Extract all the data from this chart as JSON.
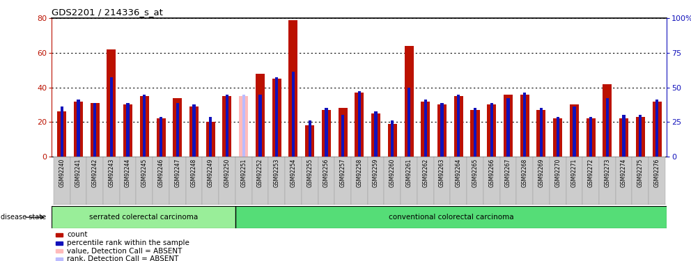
{
  "title": "GDS2201 / 214336_s_at",
  "samples": [
    "GSM92240",
    "GSM92241",
    "GSM92242",
    "GSM92243",
    "GSM92244",
    "GSM92245",
    "GSM92246",
    "GSM92247",
    "GSM92248",
    "GSM92249",
    "GSM92250",
    "GSM92251",
    "GSM92252",
    "GSM92253",
    "GSM92254",
    "GSM92255",
    "GSM92256",
    "GSM92257",
    "GSM92258",
    "GSM92259",
    "GSM92260",
    "GSM92261",
    "GSM92262",
    "GSM92263",
    "GSM92264",
    "GSM92265",
    "GSM92266",
    "GSM92267",
    "GSM92268",
    "GSM92269",
    "GSM92270",
    "GSM92271",
    "GSM92272",
    "GSM92273",
    "GSM92274",
    "GSM92275",
    "GSM92276"
  ],
  "red_values": [
    26,
    32,
    31,
    62,
    30,
    35,
    22,
    34,
    29,
    20,
    35,
    35,
    48,
    45,
    79,
    18,
    27,
    28,
    37,
    25,
    19,
    64,
    32,
    30,
    35,
    27,
    30,
    36,
    36,
    27,
    22,
    30,
    22,
    42,
    22,
    23,
    32
  ],
  "blue_values": [
    29,
    33,
    31,
    46,
    31,
    36,
    23,
    31,
    30,
    23,
    36,
    36,
    36,
    46,
    49,
    21,
    28,
    24,
    38,
    26,
    21,
    40,
    33,
    31,
    36,
    28,
    31,
    34,
    37,
    28,
    23,
    29,
    23,
    34,
    24,
    24,
    33
  ],
  "absent_indices": [
    11
  ],
  "serrated_count": 11,
  "group1_label": "serrated colerectal carcinoma",
  "group2_label": "conventional colorectal carcinoma",
  "ylim_left": [
    0,
    80
  ],
  "ylim_right": [
    0,
    100
  ],
  "yticks_left": [
    0,
    20,
    40,
    60,
    80
  ],
  "yticks_right": [
    0,
    25,
    50,
    75,
    100
  ],
  "ytick_labels_right": [
    "0",
    "25",
    "50",
    "75",
    "100%"
  ],
  "red_color": "#BB1100",
  "blue_color": "#1111BB",
  "pink_color": "#FFBBBB",
  "lightblue_color": "#BBBBFF",
  "col_bg_color": "#CCCCCC",
  "serrated_color": "#99EE99",
  "conventional_color": "#55DD77",
  "legend": [
    {
      "label": "count",
      "color": "#BB1100"
    },
    {
      "label": "percentile rank within the sample",
      "color": "#1111BB"
    },
    {
      "label": "value, Detection Call = ABSENT",
      "color": "#FFBBBB"
    },
    {
      "label": "rank, Detection Call = ABSENT",
      "color": "#BBBBFF"
    }
  ]
}
